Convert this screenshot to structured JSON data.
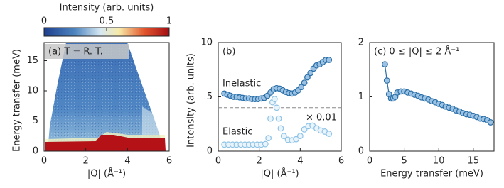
{
  "chart_data": [
    {
      "type": "heatmap",
      "annotation": "(a) T = R. T.",
      "xlabel": "|Q| (Å⁻¹)",
      "ylabel": "Energy transfer (meV)",
      "xlim": [
        0,
        6
      ],
      "xticks": [
        0,
        2,
        4,
        6
      ],
      "ylim": [
        0,
        18
      ],
      "yticks": [
        0,
        5,
        10,
        15
      ],
      "colorbar": {
        "label": "Intensity (arb. units)",
        "lim": [
          0,
          1
        ],
        "ticks": [
          0,
          0.5,
          1
        ]
      }
    },
    {
      "type": "scatter",
      "annotation": "(b)",
      "xlabel": "|Q| (Å⁻¹)",
      "ylabel": "Intensity (arb. units)",
      "xlim": [
        0,
        6
      ],
      "xticks": [
        0,
        2,
        4,
        6
      ],
      "ylim": [
        0,
        10
      ],
      "yticks": [
        0,
        5,
        10
      ],
      "hline": 4,
      "hline_label": "× 0.01",
      "series": [
        {
          "name": "Inelastic",
          "color": "#2a6fa8",
          "fill": "#9cc2e3",
          "x": [
            0.3,
            0.45,
            0.6,
            0.75,
            0.9,
            1.05,
            1.2,
            1.35,
            1.5,
            1.65,
            1.8,
            1.95,
            2.1,
            2.25,
            2.4,
            2.55,
            2.7,
            2.85,
            3.0,
            3.15,
            3.3,
            3.45,
            3.6,
            3.75,
            3.9,
            4.05,
            4.2,
            4.35,
            4.5,
            4.65,
            4.8,
            4.95,
            5.1,
            5.25,
            5.4
          ],
          "values": [
            5.3,
            5.2,
            5.1,
            5.0,
            5.0,
            4.95,
            4.9,
            4.85,
            4.85,
            4.8,
            4.8,
            4.8,
            4.85,
            4.9,
            5.1,
            5.4,
            5.7,
            5.8,
            5.75,
            5.6,
            5.45,
            5.35,
            5.3,
            5.4,
            5.6,
            5.9,
            6.3,
            6.8,
            7.2,
            7.6,
            7.9,
            8.0,
            8.2,
            8.4,
            8.4
          ]
        },
        {
          "name": "Elastic",
          "color": "#8ec3e6",
          "fill": "#eaf4fb",
          "x": [
            0.3,
            0.5,
            0.7,
            0.9,
            1.1,
            1.3,
            1.5,
            1.7,
            1.9,
            2.1,
            2.3,
            2.45,
            2.55,
            2.65,
            2.75,
            2.85,
            2.95,
            3.05,
            3.2,
            3.4,
            3.6,
            3.8,
            4.0,
            4.2,
            4.4,
            4.6,
            4.8,
            5.0,
            5.2,
            5.4
          ],
          "values": [
            0.6,
            0.6,
            0.6,
            0.6,
            0.6,
            0.6,
            0.6,
            0.6,
            0.6,
            0.6,
            0.65,
            1.2,
            3.0,
            4.5,
            4.8,
            4.0,
            3.0,
            2.1,
            1.4,
            1.05,
            1.0,
            1.1,
            1.4,
            2.0,
            2.3,
            2.35,
            2.1,
            1.9,
            1.8,
            1.6
          ]
        }
      ]
    },
    {
      "type": "line",
      "annotation": "(c) 0 ≤ |Q| ≤ 2 Å⁻¹",
      "xlabel": "Energy transfer (meV)",
      "xlim": [
        0,
        18
      ],
      "xticks": [
        0,
        5,
        10,
        15
      ],
      "ylim": [
        0,
        2
      ],
      "yticks": [
        0,
        1,
        2
      ],
      "series": [
        {
          "color": "#2a6fa8",
          "fill": "#9cc2e3",
          "x": [
            2.2,
            2.5,
            2.8,
            3.1,
            3.4,
            3.7,
            4.0,
            4.5,
            5.0,
            5.5,
            6.0,
            6.5,
            7.0,
            7.5,
            8.0,
            8.5,
            9.0,
            9.5,
            10.0,
            10.5,
            11.0,
            11.5,
            12.0,
            12.5,
            13.0,
            13.5,
            14.0,
            14.5,
            15.0,
            15.5,
            16.0,
            16.5,
            17.0,
            17.5
          ],
          "values": [
            1.6,
            1.3,
            1.05,
            0.97,
            0.97,
            1.0,
            1.08,
            1.1,
            1.1,
            1.08,
            1.06,
            1.04,
            1.02,
            0.99,
            0.97,
            0.95,
            0.92,
            0.9,
            0.87,
            0.85,
            0.82,
            0.8,
            0.78,
            0.75,
            0.73,
            0.7,
            0.68,
            0.67,
            0.65,
            0.63,
            0.6,
            0.59,
            0.57,
            0.53
          ]
        }
      ]
    }
  ]
}
